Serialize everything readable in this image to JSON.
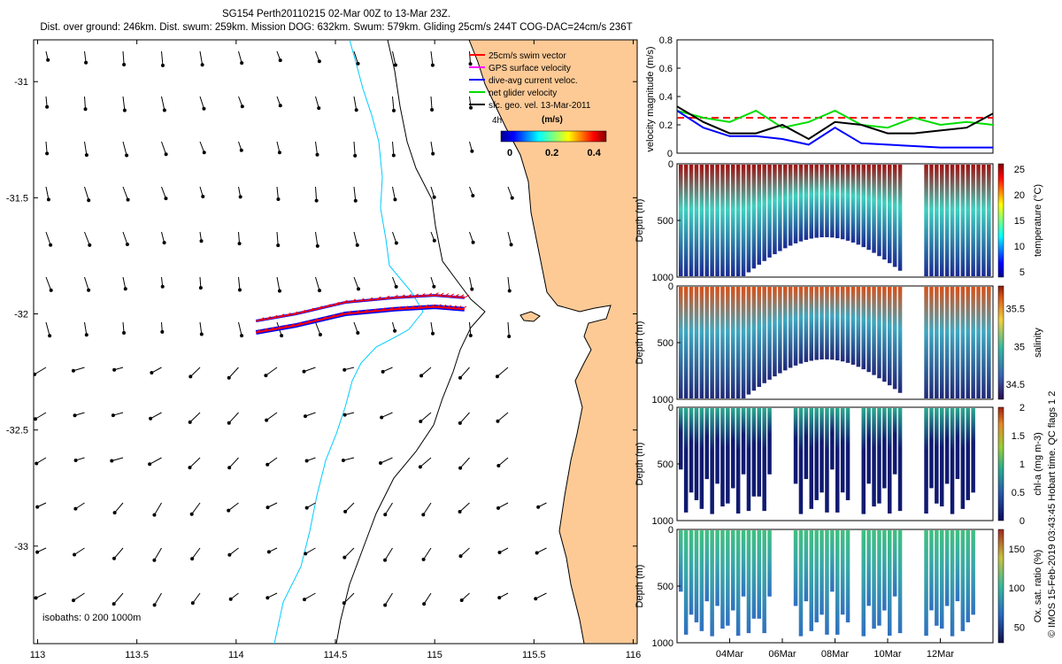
{
  "title": {
    "line1": "SG154 Perth20110215 02-Mar 00Z to 13-Mar 23Z.",
    "line2": "Dist. over ground: 246km. Dist. swum: 259km. Mission DOG: 632km. Swum: 579km. Gliding 25cm/s 244T COG-DAC=24cm/s 236T"
  },
  "map": {
    "legend": [
      {
        "label": "25cm/s swim vector",
        "color": "#ff0000"
      },
      {
        "label": "GPS surface velocity",
        "color": "#ff00ff"
      },
      {
        "label": "dive-avg current veloc.",
        "color": "#0000ff"
      },
      {
        "label": "net glider velocity",
        "color": "#00dd00"
      },
      {
        "label": "sfc. geo. vel. 13-Mar-2011",
        "color": "#000000"
      }
    ],
    "arrow_scale_label": "4h",
    "colorbar_unit": "(m/s)",
    "colorbar_ticks": [
      "0",
      "0.2",
      "0.4"
    ],
    "isobaths_note": "isobaths: 0   200  1000m",
    "land_color": "#fdca96",
    "isobath_200_color": "#00ccff"
  },
  "footer_credit": "© IMOS 15-Feb-2019 03:43:45 Hobart time. QC flags 1  2",
  "chart_data": [
    {
      "type": "map",
      "name": "track map",
      "x_ticks": [
        "113",
        "113.5",
        "114",
        "114.5",
        "115",
        "115.5",
        "116"
      ],
      "y_ticks": [
        "-31",
        "-31.5",
        "-32",
        "-32.5",
        "-33"
      ],
      "xlim": [
        112.98,
        116.02
      ],
      "ylim": [
        -33.42,
        -30.82
      ],
      "track_lon": [
        114.1,
        114.3,
        114.55,
        114.8,
        115.0,
        115.15
      ],
      "track_lat": [
        -32.08,
        -32.05,
        -32.0,
        -31.98,
        -31.97,
        -31.98
      ]
    },
    {
      "type": "line",
      "ylabel": "velocity magnitude (m/s)",
      "ylim": [
        0,
        0.8
      ],
      "y_ticks": [
        "0",
        "0.2",
        "0.4",
        "0.6",
        "0.8"
      ],
      "x_days": [
        2,
        3,
        4,
        5,
        6,
        7,
        8,
        9,
        10,
        11,
        12,
        13,
        14
      ],
      "series": [
        {
          "color": "#ff0000",
          "dashed": true,
          "values": [
            0.25,
            0.25,
            0.25,
            0.25,
            0.25,
            0.25,
            0.25,
            0.25,
            0.25,
            0.25,
            0.25,
            0.25,
            0.25
          ]
        },
        {
          "color": "#00dd00",
          "values": [
            0.3,
            0.25,
            0.22,
            0.3,
            0.18,
            0.22,
            0.3,
            0.2,
            0.18,
            0.25,
            0.2,
            0.22,
            0.2
          ]
        },
        {
          "color": "#000000",
          "values": [
            0.33,
            0.22,
            0.14,
            0.14,
            0.2,
            0.1,
            0.22,
            0.2,
            0.14,
            0.14,
            0.16,
            0.18,
            0.28
          ]
        },
        {
          "color": "#0000ff",
          "values": [
            0.3,
            0.18,
            0.12,
            0.12,
            0.1,
            0.06,
            0.18,
            0.07,
            0.06,
            0.05,
            0.04,
            0.04,
            0.04
          ]
        }
      ]
    },
    {
      "type": "heatmap",
      "ylabel": "Depth (m)",
      "y_ticks": [
        "0",
        "500",
        "1000"
      ],
      "colorbar_label": "temperature (°C)",
      "colorbar_ticks": [
        "5",
        "10",
        "15",
        "20",
        "25"
      ],
      "clim": [
        4,
        26
      ]
    },
    {
      "type": "heatmap",
      "ylabel": "Depth (m)",
      "y_ticks": [
        "0",
        "500",
        "1000"
      ],
      "colorbar_label": "salinity",
      "colorbar_ticks": [
        "34.5",
        "35",
        "35.5"
      ],
      "clim": [
        34.3,
        35.8
      ]
    },
    {
      "type": "heatmap",
      "ylabel": "Depth (m)",
      "y_ticks": [
        "0",
        "500",
        "1000"
      ],
      "colorbar_label": "chl-a (mg m-3)",
      "colorbar_ticks": [
        "0",
        "0.5",
        "1",
        "1.5",
        "2"
      ],
      "clim": [
        0,
        2
      ]
    },
    {
      "type": "heatmap",
      "ylabel": "Depth (m)",
      "y_ticks": [
        "0",
        "500",
        "1000"
      ],
      "colorbar_label": "Ox. sat. ratio (%)",
      "colorbar_ticks": [
        "50",
        "100",
        "150"
      ],
      "clim": [
        30,
        175
      ],
      "x_ticks": [
        "04Mar",
        "06Mar",
        "08Mar",
        "10Mar",
        "12Mar"
      ]
    }
  ]
}
